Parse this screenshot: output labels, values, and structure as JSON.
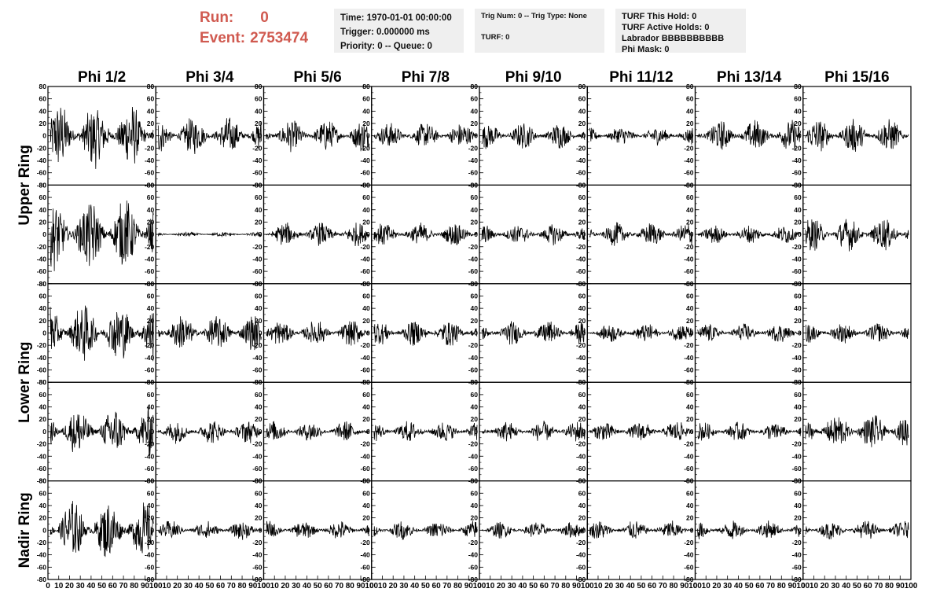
{
  "run_info": {
    "run_label": "Run:",
    "run_value": "0",
    "event_label": "Event:",
    "event_value": "2753474"
  },
  "info_time": [
    "Time: 1970-01-01 00:00:00",
    "Trigger: 0.000000 ms",
    "Priority: 0 -- Queue: 0"
  ],
  "info_trig": {
    "line1": "Trig Num: 0 -- Trig Type: None",
    "line2": "TURF: 0"
  },
  "info_turf": [
    "TURF This Hold: 0",
    "TURF Active Holds: 0",
    "Labrador BBBBBBBBBB",
    "Phi Mask: 0"
  ],
  "chart_data": {
    "type": "line",
    "columns": [
      "Phi 1/2",
      "Phi 3/4",
      "Phi 5/6",
      "Phi 7/8",
      "Phi 9/10",
      "Phi 11/12",
      "Phi 13/14",
      "Phi 15/16"
    ],
    "rows": [
      "Upper Ring",
      "Upper Ring",
      "Lower Ring",
      "Lower Ring",
      "Nadir Ring"
    ],
    "row_labels": [
      "Upper Ring",
      "Lower Ring",
      "Nadir Ring"
    ],
    "ylim": [
      -80,
      80
    ],
    "xlim": [
      0,
      100
    ],
    "y_ticks": [
      "-80",
      "-60",
      "-40",
      "-20",
      "0",
      "20",
      "40",
      "60",
      "80"
    ],
    "x_ticks": [
      "0",
      "10",
      "20",
      "30",
      "40",
      "50",
      "60",
      "70",
      "80",
      "90",
      "100"
    ],
    "amplitudes": [
      [
        55,
        32,
        27,
        22,
        22,
        16,
        27,
        28
      ],
      [
        60,
        4,
        20,
        20,
        18,
        20,
        16,
        28
      ],
      [
        50,
        30,
        22,
        22,
        20,
        16,
        16,
        18
      ],
      [
        42,
        20,
        18,
        18,
        18,
        18,
        16,
        30
      ],
      [
        50,
        16,
        16,
        16,
        14,
        16,
        16,
        16
      ]
    ],
    "series_samples": 260
  }
}
